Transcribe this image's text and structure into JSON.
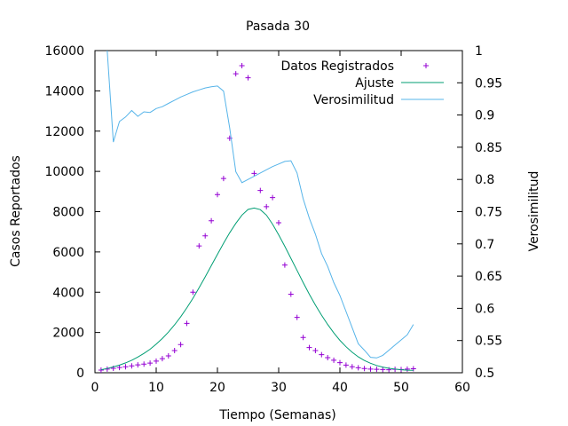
{
  "chart_data": {
    "type": "line",
    "title": "Pasada 30",
    "xlabel": "Tiempo (Semanas)",
    "ylabel": "Casos Reportados",
    "y2label": "Verosimilitud",
    "xlim": [
      0,
      60
    ],
    "ylim": [
      0,
      16000
    ],
    "y2lim": [
      0.5,
      1
    ],
    "x_ticks": [
      0,
      10,
      20,
      30,
      40,
      50,
      60
    ],
    "y_ticks": [
      0,
      2000,
      4000,
      6000,
      8000,
      10000,
      12000,
      14000,
      16000
    ],
    "y2_ticks": [
      0.5,
      0.55,
      0.6,
      0.65,
      0.7,
      0.75,
      0.8,
      0.85,
      0.9,
      0.95,
      1
    ],
    "grid": false,
    "legend_position": "top-right",
    "colors": {
      "Datos Registrados": "#9400d3",
      "Ajuste": "#009e73",
      "Verosimilitud": "#56b4e9"
    },
    "series": [
      {
        "name": "Datos Registrados",
        "style": "points",
        "axis": "y",
        "x": [
          1,
          2,
          3,
          4,
          5,
          6,
          7,
          8,
          9,
          10,
          11,
          12,
          13,
          14,
          15,
          16,
          17,
          18,
          19,
          20,
          21,
          22,
          23,
          24,
          25,
          26,
          27,
          28,
          29,
          30,
          31,
          32,
          33,
          34,
          35,
          36,
          37,
          38,
          39,
          40,
          41,
          42,
          43,
          44,
          45,
          46,
          47,
          48,
          49,
          50,
          51,
          52
        ],
        "y": [
          130,
          180,
          220,
          260,
          300,
          340,
          390,
          430,
          480,
          580,
          700,
          840,
          1100,
          1400,
          2450,
          4000,
          6300,
          6800,
          7550,
          8850,
          9650,
          11650,
          14850,
          15250,
          14650,
          9900,
          9050,
          8250,
          8700,
          7450,
          5350,
          3900,
          2750,
          1750,
          1250,
          1100,
          900,
          750,
          620,
          500,
          380,
          300,
          250,
          210,
          180,
          170,
          160,
          150,
          170,
          160,
          180,
          200
        ]
      },
      {
        "name": "Ajuste",
        "style": "line",
        "axis": "y",
        "x": [
          1,
          2,
          3,
          4,
          5,
          6,
          7,
          8,
          9,
          10,
          11,
          12,
          13,
          14,
          15,
          16,
          17,
          18,
          19,
          20,
          21,
          22,
          23,
          24,
          25,
          26,
          27,
          28,
          29,
          30,
          31,
          32,
          33,
          34,
          35,
          36,
          37,
          38,
          39,
          40,
          41,
          42,
          43,
          44,
          45,
          46,
          47,
          48,
          49,
          50,
          51,
          52
        ],
        "y": [
          150,
          210,
          290,
          380,
          490,
          620,
          780,
          960,
          1170,
          1420,
          1700,
          2020,
          2380,
          2780,
          3220,
          3700,
          4220,
          4760,
          5320,
          5880,
          6430,
          6950,
          7420,
          7830,
          8110,
          8180,
          8100,
          7830,
          7380,
          6850,
          6280,
          5680,
          5080,
          4480,
          3900,
          3360,
          2860,
          2400,
          1980,
          1610,
          1290,
          1020,
          790,
          610,
          470,
          360,
          280,
          220,
          180,
          150,
          130,
          120
        ]
      },
      {
        "name": "Verosimilitud",
        "style": "line",
        "axis": "y2",
        "x": [
          2,
          3,
          4,
          5,
          6,
          7,
          8,
          9,
          10,
          11,
          12,
          13,
          14,
          15,
          16,
          17,
          18,
          19,
          20,
          21,
          22,
          23,
          24,
          25,
          26,
          27,
          28,
          29,
          30,
          31,
          32,
          33,
          34,
          35,
          36,
          37,
          38,
          39,
          40,
          41,
          42,
          43,
          44,
          45,
          46,
          47,
          48,
          49,
          50,
          51,
          52
        ],
        "y": [
          1.0,
          0.858,
          0.89,
          0.897,
          0.907,
          0.898,
          0.905,
          0.904,
          0.91,
          0.913,
          0.918,
          0.923,
          0.928,
          0.932,
          0.936,
          0.939,
          0.942,
          0.944,
          0.945,
          0.937,
          0.88,
          0.812,
          0.795,
          0.8,
          0.805,
          0.81,
          0.815,
          0.82,
          0.824,
          0.828,
          0.829,
          0.81,
          0.77,
          0.74,
          0.715,
          0.685,
          0.665,
          0.64,
          0.62,
          0.595,
          0.57,
          0.545,
          0.535,
          0.524,
          0.523,
          0.527,
          0.535,
          0.543,
          0.551,
          0.559,
          0.575
        ]
      }
    ]
  }
}
